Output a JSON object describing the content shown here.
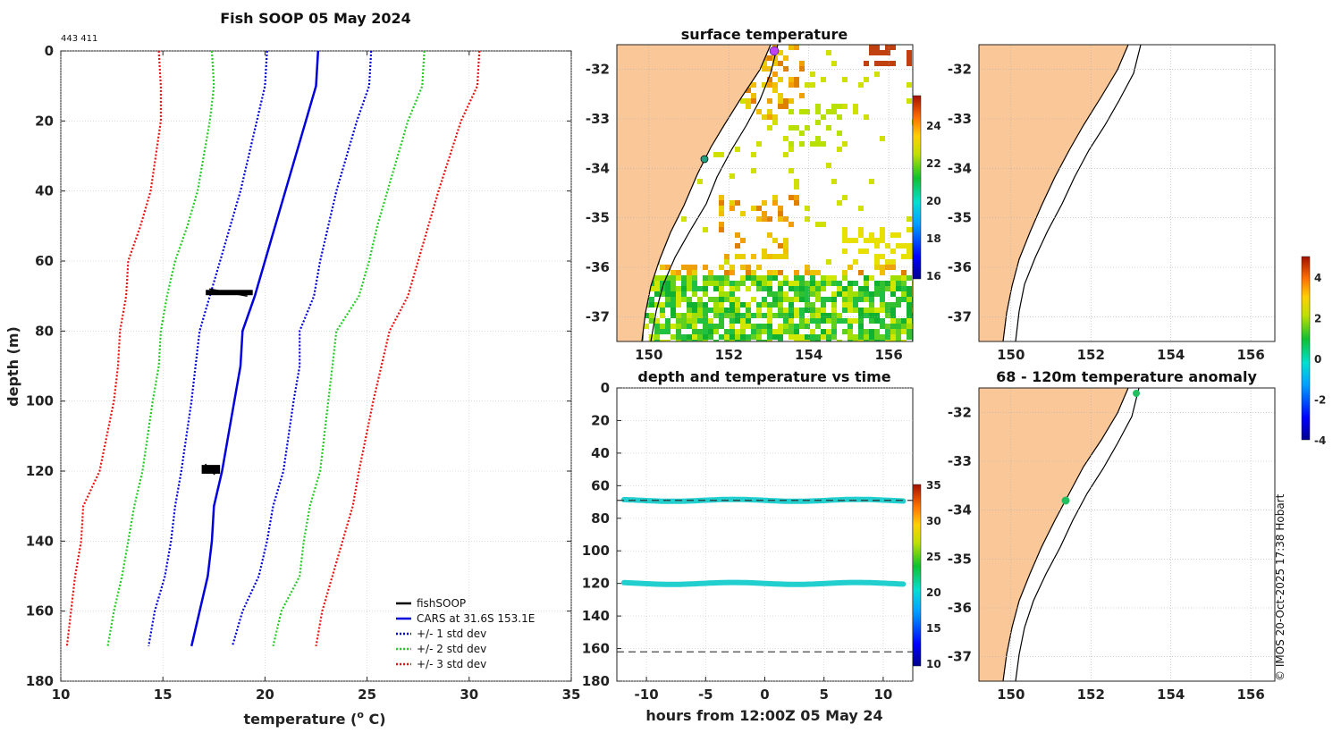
{
  "colors": {
    "land": "#fac898",
    "cars": "#0000dd",
    "std1": "#0000dd",
    "std2": "#22cc22",
    "std3": "#ee1111",
    "fishsoop": "#000000",
    "obs": "#22cfcf"
  },
  "header": {
    "title": "Fish SOOP 05 May 2024",
    "id_text": "443 411",
    "credit": "© IMOS 20-Oct-2025 17:38 Hobart"
  },
  "chart_data": [
    {
      "id": "profile",
      "type": "line",
      "xlabel": "temperature (o C)",
      "ylabel": "depth (m)",
      "xlim": [
        10,
        35
      ],
      "ylim": [
        180,
        0
      ],
      "xticks": [
        "10",
        "15",
        "20",
        "25",
        "30",
        "35"
      ],
      "yticks": [
        "0",
        "20",
        "40",
        "60",
        "80",
        "100",
        "120",
        "140",
        "160",
        "180"
      ],
      "legend_position": "bottom-right",
      "legend": [
        "fishSOOP",
        "CARS at 31.6S 153.1E",
        "+/- 1 std dev",
        "+/- 2 std dev",
        "+/- 3 std dev"
      ],
      "depth": [
        0,
        10,
        20,
        40,
        50,
        60,
        70,
        80,
        90,
        100,
        120,
        130,
        140,
        150,
        160,
        170
      ],
      "series": [
        {
          "name": "CARS at 31.6S 153.1E",
          "style": "solid",
          "values": [
            22.6,
            22.5,
            22.0,
            21.0,
            20.5,
            20.0,
            19.5,
            18.9,
            18.8,
            18.5,
            17.9,
            17.5,
            17.4,
            17.2,
            16.8,
            16.4
          ]
        },
        {
          "name": "+1 std dev",
          "style": "dotted",
          "values": [
            25.2,
            25.1,
            24.5,
            23.5,
            23.1,
            22.7,
            22.4,
            21.7,
            21.7,
            21.4,
            20.9,
            20.4,
            20.1,
            19.7,
            18.9,
            18.4
          ]
        },
        {
          "name": "-1 std dev",
          "style": "dotted",
          "values": [
            20.1,
            20.0,
            19.6,
            18.8,
            18.3,
            17.8,
            17.3,
            16.8,
            16.6,
            16.4,
            15.9,
            15.6,
            15.4,
            15.1,
            14.6,
            14.3
          ]
        },
        {
          "name": "+2 std dev",
          "style": "dotted",
          "values": [
            27.8,
            27.7,
            27.0,
            26.0,
            25.5,
            25.1,
            24.6,
            23.5,
            23.3,
            23.1,
            22.7,
            22.2,
            21.9,
            21.7,
            20.8,
            20.4
          ]
        },
        {
          "name": "-2 std dev",
          "style": "dotted",
          "values": [
            17.4,
            17.5,
            17.3,
            16.7,
            16.2,
            15.6,
            15.2,
            14.9,
            14.8,
            14.5,
            14.0,
            13.6,
            13.3,
            13.0,
            12.6,
            12.3
          ]
        },
        {
          "name": "+3 std dev",
          "style": "dotted",
          "values": [
            30.5,
            30.4,
            29.6,
            28.5,
            28.0,
            27.5,
            27.0,
            26.1,
            25.7,
            25.3,
            24.6,
            24.3,
            23.8,
            23.3,
            22.8,
            22.5
          ]
        },
        {
          "name": "-3 std dev",
          "style": "dotted",
          "values": [
            14.8,
            14.9,
            14.9,
            14.4,
            13.9,
            13.3,
            13.2,
            12.9,
            12.8,
            12.6,
            11.9,
            11.1,
            11.0,
            10.7,
            10.5,
            10.3
          ]
        }
      ],
      "fishsoop": [
        {
          "depth_range": [
            68.5,
            69.5
          ],
          "temp_range": [
            17.1,
            19.4
          ]
        },
        {
          "depth_range": [
            118.5,
            120.5
          ],
          "temp_range": [
            16.9,
            17.8
          ]
        }
      ]
    },
    {
      "id": "surface_temperature",
      "type": "heatmap",
      "title": "surface temperature",
      "xticks": [
        "150",
        "152",
        "154",
        "156"
      ],
      "yticks": [
        "-32",
        "-33",
        "-34",
        "-35",
        "-36",
        "-37"
      ],
      "colorbar_ticks": [
        "16",
        "18",
        "20",
        "22",
        "24"
      ]
    },
    {
      "id": "depth_time",
      "type": "scatter",
      "title": "depth and temperature vs time",
      "xlabel": "hours from 12:00Z 05 May 24",
      "xticks": [
        "-10",
        "-5",
        "0",
        "5",
        "10"
      ],
      "yticks": [
        "0",
        "20",
        "40",
        "60",
        "80",
        "100",
        "120",
        "140",
        "160",
        "180"
      ],
      "xlim": [
        -12.5,
        12.5
      ],
      "ylim": [
        180,
        0
      ],
      "colorbar_ticks": [
        "10",
        "15",
        "20",
        "25",
        "30",
        "35"
      ],
      "series": [
        {
          "name": "upper",
          "depth": 69,
          "temperature_c": 19.5
        },
        {
          "name": "lower",
          "depth": 120,
          "temperature_c": 19.0
        }
      ],
      "reference_depths": [
        69,
        162
      ]
    },
    {
      "id": "map_blank",
      "type": "heatmap",
      "xticks": [
        "150",
        "152",
        "154",
        "156"
      ],
      "yticks": [
        "-32",
        "-33",
        "-34",
        "-35",
        "-36",
        "-37"
      ]
    },
    {
      "id": "anomaly",
      "type": "heatmap",
      "title": "68 - 120m temperature anomaly",
      "xticks": [
        "150",
        "152",
        "154",
        "156"
      ],
      "yticks": [
        "-32",
        "-33",
        "-34",
        "-35",
        "-36",
        "-37"
      ],
      "colorbar_ticks": [
        "4",
        "2",
        "0",
        "-2",
        "-4"
      ]
    }
  ]
}
